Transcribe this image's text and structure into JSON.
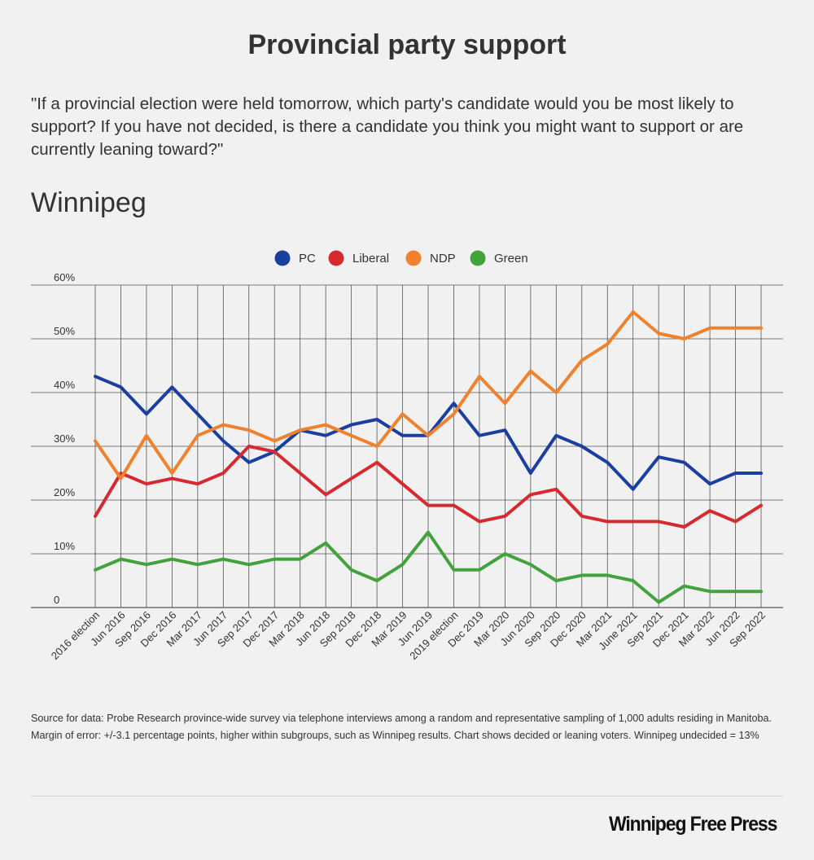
{
  "header": {
    "title": "Provincial party support",
    "question": "\"If a provincial election were held tomorrow, which party's candidate would you be most likely to support? If you have not decided, is there a candidate you think you might want to support or are currently leaning toward?\"",
    "section": "Winnipeg"
  },
  "chart_data": {
    "type": "line",
    "legend_position": "top-center",
    "grid": true,
    "ylim": [
      0,
      60
    ],
    "y_ticks": [
      "0",
      "10%",
      "20%",
      "30%",
      "40%",
      "50%",
      "60%"
    ],
    "categories": [
      "2016 election",
      "Jun 2016",
      "Sep 2016",
      "Dec 2016",
      "Mar 2017",
      "Jun 2017",
      "Sep 2017",
      "Dec 2017",
      "Mar 2018",
      "Jun 2018",
      "Sep 2018",
      "Dec 2018",
      "Mar 2019",
      "Jun 2019",
      "2019 election",
      "Dec 2019",
      "Mar 2020",
      "Jun 2020",
      "Sep 2020",
      "Dec 2020",
      "Mar 2021",
      "June 2021",
      "Sep 2021",
      "Dec 2021",
      "Mar 2022",
      "Jun 2022",
      "Sep 2022"
    ],
    "series": [
      {
        "name": "PC",
        "color": "#1a3fa0",
        "values": [
          43,
          41,
          36,
          41,
          36,
          31,
          27,
          29,
          33,
          32,
          34,
          35,
          32,
          32,
          38,
          32,
          33,
          25,
          32,
          30,
          27,
          22,
          28,
          27,
          23,
          25,
          25
        ]
      },
      {
        "name": "Liberal",
        "color": "#d62930",
        "values": [
          17,
          25,
          23,
          24,
          23,
          25,
          30,
          29,
          25,
          21,
          24,
          27,
          23,
          19,
          19,
          16,
          17,
          21,
          22,
          17,
          16,
          16,
          16,
          15,
          18,
          16,
          19
        ]
      },
      {
        "name": "NDP",
        "color": "#f0822d",
        "values": [
          31,
          24,
          32,
          25,
          32,
          34,
          33,
          31,
          33,
          34,
          32,
          30,
          36,
          32,
          36,
          43,
          38,
          44,
          40,
          46,
          49,
          55,
          51,
          50,
          52,
          52,
          52
        ]
      },
      {
        "name": "Green",
        "color": "#42a33c",
        "values": [
          7,
          9,
          8,
          9,
          8,
          9,
          8,
          9,
          9,
          12,
          7,
          5,
          8,
          14,
          7,
          7,
          10,
          8,
          5,
          6,
          6,
          5,
          1,
          4,
          3,
          3,
          3
        ]
      }
    ]
  },
  "footer": {
    "source": "Source for data:  Probe Research province-wide survey via telephone interviews among a random and representative sampling of 1,000 adults residing in Manitoba.  Margin of error: +/-3.1 percentage points, higher within subgroups, such as Winnipeg results.  Chart shows decided or leaning voters. Winnipeg undecided = 13%",
    "logo": "Winnipeg Free Press"
  },
  "colors": {
    "background": "#f1f1f1",
    "gridline": "#555555",
    "text": "#333333"
  }
}
